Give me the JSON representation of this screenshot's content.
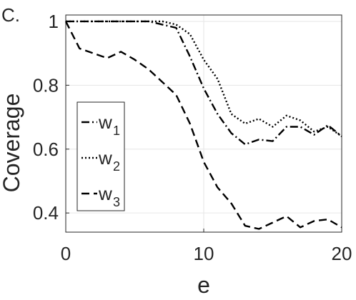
{
  "panel_label": "C.",
  "chart_data": {
    "type": "line",
    "xlabel": "e",
    "ylabel": "Coverage",
    "xlim": [
      0,
      20
    ],
    "ylim": [
      0.34,
      1.02
    ],
    "xticks": [
      0,
      10,
      20
    ],
    "xtick_labels": [
      "0",
      "10",
      "20"
    ],
    "yticks": [
      0.4,
      0.6,
      0.8,
      1
    ],
    "ytick_labels": [
      "0.4",
      "0.6",
      "0.8",
      "1"
    ],
    "grid": true,
    "legend_position": "bottom-left",
    "x": [
      0,
      1,
      2,
      3,
      4,
      5,
      6,
      7,
      8,
      9,
      10,
      11,
      12,
      13,
      14,
      15,
      16,
      17,
      18,
      19,
      20
    ],
    "series": [
      {
        "name": "w",
        "subscript": "1",
        "dash": "dash-dot",
        "values": [
          1,
          1,
          1,
          1,
          1,
          1,
          1,
          0.99,
          0.98,
          0.89,
          0.79,
          0.71,
          0.65,
          0.615,
          0.63,
          0.625,
          0.67,
          0.67,
          0.645,
          0.675,
          0.64
        ]
      },
      {
        "name": "w",
        "subscript": "2",
        "dash": "dotted",
        "values": [
          1,
          1,
          1,
          1,
          1,
          1,
          1,
          1,
          0.99,
          0.96,
          0.88,
          0.82,
          0.71,
          0.68,
          0.695,
          0.67,
          0.705,
          0.69,
          0.655,
          0.67,
          0.64
        ]
      },
      {
        "name": "w",
        "subscript": "3",
        "dash": "dashed",
        "values": [
          1,
          0.915,
          0.9,
          0.885,
          0.905,
          0.88,
          0.85,
          0.81,
          0.77,
          0.68,
          0.56,
          0.48,
          0.43,
          0.36,
          0.35,
          0.37,
          0.39,
          0.355,
          0.375,
          0.38,
          0.355
        ]
      }
    ]
  }
}
